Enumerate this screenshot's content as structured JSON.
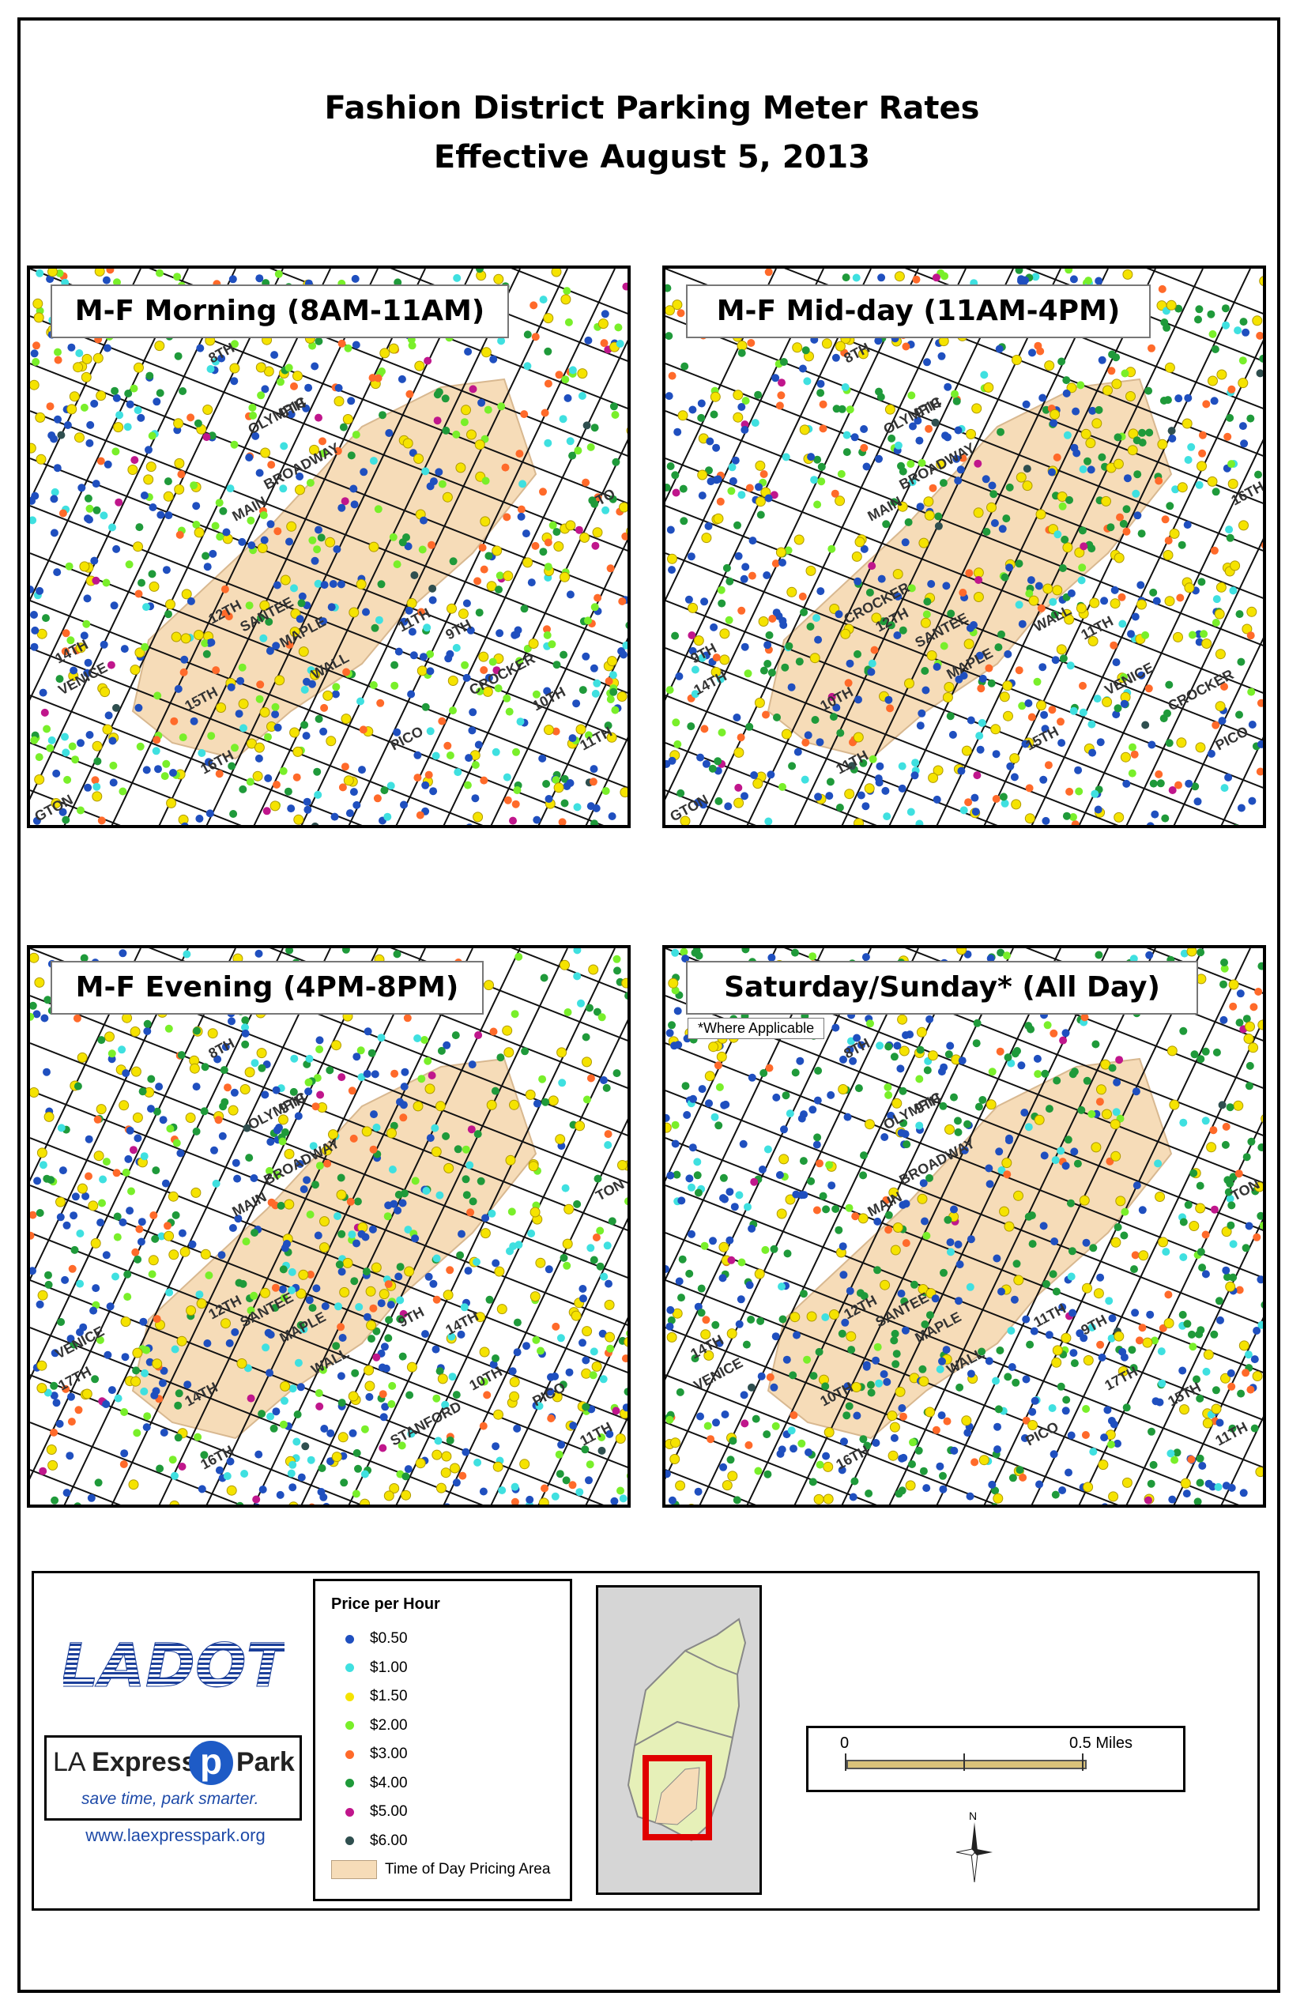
{
  "title": {
    "line1": "Fashion District Parking Meter Rates",
    "line2": "Effective August 5, 2013"
  },
  "panels": [
    {
      "label": "M-F Morning (8AM-11AM)",
      "note": ""
    },
    {
      "label": "M-F Mid-day (11AM-4PM)",
      "note": ""
    },
    {
      "label": "M-F Evening (4PM-8PM)",
      "note": ""
    },
    {
      "label": "Saturday/Sunday* (All Day)",
      "note": "*Where Applicable"
    }
  ],
  "street_labels": {
    "panel1": [
      "8TH",
      "OLYMPIC",
      "BROADWAY",
      "9TH",
      "MAIN",
      "12TH",
      "SANTEE",
      "MAPLE",
      "WALL",
      "11TH",
      "9TH",
      "14TH",
      "VENICE",
      "CROCKER",
      "10TH",
      "15TH",
      "PICO",
      "11TH",
      "16TH",
      "TO",
      "GTON"
    ],
    "panel2": [
      "8TH",
      "OLYMPIC",
      "BROADWAY",
      "9TH",
      "MAIN",
      "CROCKER",
      "12TH",
      "SANTEE",
      "MAPLE",
      "WALL",
      "11TH",
      "9TH",
      "14TH",
      "VENICE",
      "CROCKER",
      "10TH",
      "15TH",
      "PICO",
      "11TH",
      "16TH",
      "GTON"
    ],
    "panel3": [
      "8TH",
      "OLYMPIC",
      "BROADWAY",
      "9TH",
      "MAIN",
      "12TH",
      "SANTEE",
      "MAPLE",
      "WALL",
      "9TH",
      "14TH",
      "VENICE",
      "17TH",
      "10TH",
      "PICO",
      "14TH",
      "STANFORD",
      "11TH",
      "16TH",
      "TON"
    ],
    "panel4": [
      "8TH",
      "OLYMPIC",
      "BROADWAY",
      "9TH",
      "MAIN",
      "12TH",
      "SANTEE",
      "MAPLE",
      "WALL",
      "11TH",
      "9TH",
      "14TH",
      "VENICE",
      "17TH",
      "15TH",
      "10TH",
      "PICO",
      "11TH",
      "16TH",
      "TON"
    ]
  },
  "legend": {
    "title": "Price per Hour",
    "items": [
      {
        "label": "$0.50",
        "color": "#1f4fbf"
      },
      {
        "label": "$1.00",
        "color": "#3fe0e0"
      },
      {
        "label": "$1.50",
        "color": "#f5e300"
      },
      {
        "label": "$2.00",
        "color": "#79ef2a"
      },
      {
        "label": "$3.00",
        "color": "#ff6a2a"
      },
      {
        "label": "$4.00",
        "color": "#1f9a3a"
      },
      {
        "label": "$5.00",
        "color": "#c0168c"
      },
      {
        "label": "$6.00",
        "color": "#2f4f4f"
      }
    ],
    "area_label": "Time of Day Pricing Area",
    "area_color": "#f6dcb8"
  },
  "logos": {
    "ladot": "LADOT",
    "la": "LA",
    "express": "Express",
    "park": "Park",
    "tagline": "save time, park smarter.",
    "url": "www.laexpresspark.org"
  },
  "scale": {
    "start": "0",
    "end": "0.5 Miles"
  },
  "north": "N"
}
